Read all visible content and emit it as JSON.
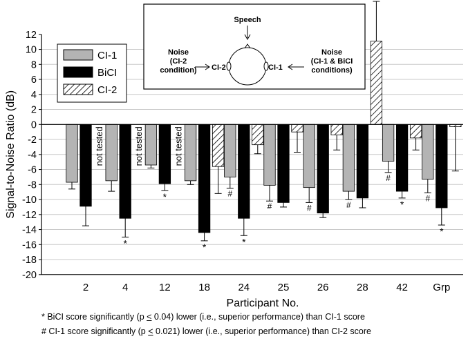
{
  "chart_data": {
    "type": "bar",
    "ylabel": "Signal-to-Noise Ratio (dB)",
    "xlabel": "Participant No.",
    "ylim": [
      -20,
      12
    ],
    "ytick_step": 2,
    "grid": "horizontal",
    "legend_position": "top-left",
    "categories": [
      "2",
      "4",
      "12",
      "18",
      "24",
      "25",
      "26",
      "28",
      "42",
      "Grp"
    ],
    "series": [
      {
        "name": "CI-1",
        "pattern": "gray",
        "values": [
          -7.7,
          -7.5,
          -5.4,
          -7.5,
          -7.0,
          -8.1,
          -8.4,
          -8.9,
          -4.9,
          -7.3
        ],
        "error": [
          0.9,
          1.4,
          0.4,
          0.5,
          1.5,
          2.1,
          2.0,
          1.1,
          1.5,
          1.8
        ]
      },
      {
        "name": "BiCI",
        "pattern": "black",
        "values": [
          -10.9,
          -12.5,
          -7.9,
          -14.4,
          -12.5,
          -10.4,
          -11.8,
          -9.8,
          -8.9,
          -11.1
        ],
        "error": [
          2.6,
          2.5,
          0.9,
          1.1,
          2.3,
          0.6,
          0.6,
          1.3,
          0.9,
          2.3
        ]
      },
      {
        "name": "CI-2",
        "pattern": "hatched",
        "values": [
          null,
          null,
          null,
          -5.6,
          -2.7,
          -1.0,
          -1.4,
          11.1,
          -1.8,
          -0.3
        ],
        "error": [
          null,
          null,
          null,
          3.6,
          1.2,
          2.7,
          2.0,
          5.3,
          1.6,
          5.9
        ]
      }
    ],
    "annotations": {
      "not_tested": {
        "text": "not tested",
        "categories": [
          "2",
          "4",
          "12"
        ]
      },
      "stars": [
        "4",
        "12",
        "18",
        "24",
        "42",
        "Grp"
      ],
      "hashes": [
        "24",
        "25",
        "26",
        "28",
        "42",
        "Grp"
      ]
    },
    "inset": {
      "speech": "Speech",
      "left_noise": [
        "Noise",
        "(CI-2",
        "condition)"
      ],
      "left_label": "CI-2",
      "right_noise": [
        "Noise",
        "(CI-1 & BiCI",
        "conditions)"
      ],
      "right_label": "CI-1"
    }
  },
  "footnotes": {
    "star_prefix": "* BiCI score significantly (p ",
    "star_suffix": " 0.04) lower (i.e., superior performance) than CI-1 score",
    "hash_prefix": "# CI-1 score significantly (p ",
    "hash_suffix": " 0.021) lower (i.e., superior performance) than CI-2 score",
    "le_symbol": "<"
  },
  "colors": {
    "ci1": "#b4b4b4",
    "bici": "#000000",
    "ci2_bg": "#ffffff",
    "grid": "#c8c8c8"
  }
}
